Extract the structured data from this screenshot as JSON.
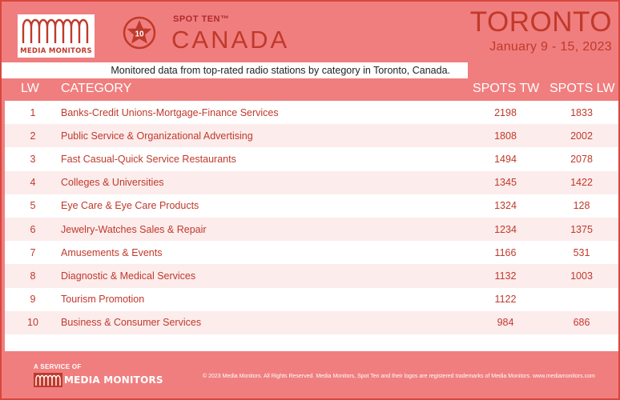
{
  "header": {
    "logo_text": "MEDIA MONITORS",
    "badge_number": "10",
    "spot_ten": "SPOT TEN™",
    "country": "CANADA",
    "city": "TORONTO",
    "date_range": "January 9 - 15, 2023"
  },
  "subtitle": "Monitored data from top-rated radio stations by category in Toronto, Canada.",
  "columns": {
    "lw": "LW",
    "category": "CATEGORY",
    "spots_tw": "SPOTS TW",
    "spots_lw": "SPOTS LW"
  },
  "rows": [
    {
      "lw": "1",
      "category": "Banks-Credit Unions-Mortgage-Finance Services",
      "spots_tw": "2198",
      "spots_lw": "1833"
    },
    {
      "lw": "2",
      "category": "Public Service & Organizational Advertising",
      "spots_tw": "1808",
      "spots_lw": "2002"
    },
    {
      "lw": "3",
      "category": "Fast Casual-Quick Service Restaurants",
      "spots_tw": "1494",
      "spots_lw": "2078"
    },
    {
      "lw": "4",
      "category": "Colleges & Universities",
      "spots_tw": "1345",
      "spots_lw": "1422"
    },
    {
      "lw": "5",
      "category": "Eye Care & Eye Care Products",
      "spots_tw": "1324",
      "spots_lw": "128"
    },
    {
      "lw": "6",
      "category": "Jewelry-Watches Sales & Repair",
      "spots_tw": "1234",
      "spots_lw": "1375"
    },
    {
      "lw": "7",
      "category": "Amusements & Events",
      "spots_tw": "1166",
      "spots_lw": "531"
    },
    {
      "lw": "8",
      "category": "Diagnostic & Medical Services",
      "spots_tw": "1132",
      "spots_lw": "1003"
    },
    {
      "lw": "9",
      "category": "Tourism Promotion",
      "spots_tw": "1122",
      "spots_lw": ""
    },
    {
      "lw": "10",
      "category": "Business & Consumer Services",
      "spots_tw": "984",
      "spots_lw": "686"
    }
  ],
  "footer": {
    "service_label": "A SERVICE OF",
    "logo_text": "MEDIA MONITORS",
    "copyright": "© 2023 Media Monitors. All Rights Reserved. Media Monitors, Spot Ten and their logos are registered trademarks of Media Monitors. www.mediamonitors.com"
  },
  "colors": {
    "background": "#f07e7e",
    "accent": "#c0392b",
    "row_alt": "#fcecec"
  }
}
